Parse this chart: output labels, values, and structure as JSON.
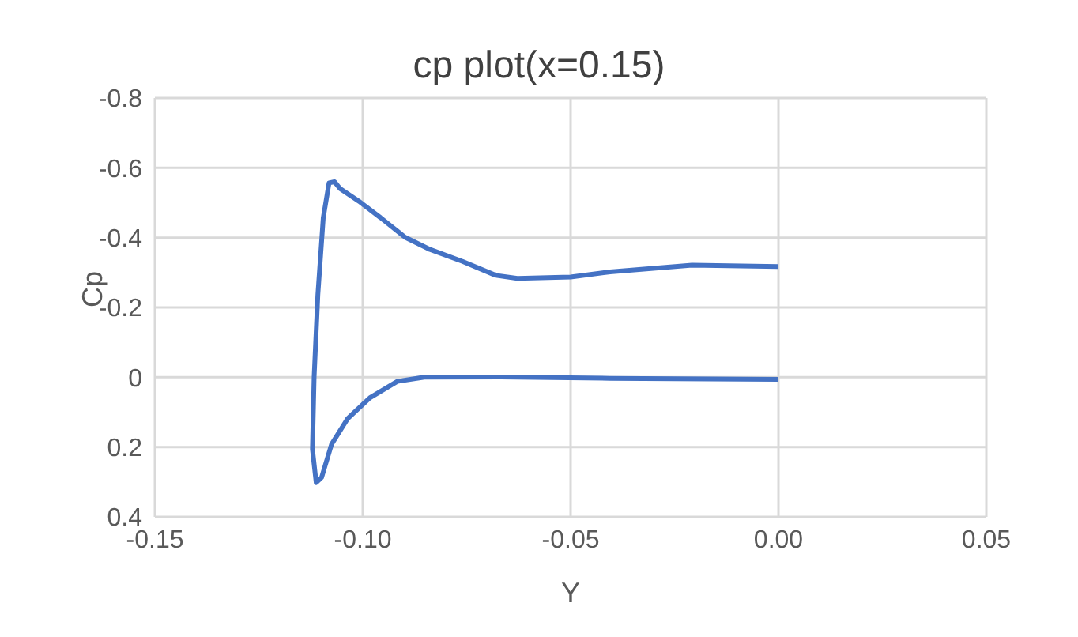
{
  "chart_data": {
    "type": "line",
    "title": "cp plot(x=0.15)",
    "xlabel": "Y",
    "ylabel": "Cp",
    "series": [
      {
        "color": "#4472c4",
        "x": [
          0,
          -0.0208,
          -0.0405,
          -0.05,
          -0.0628,
          -0.068,
          -0.076,
          -0.0838,
          -0.0898,
          -0.0957,
          -0.1009,
          -0.1055,
          -0.1068,
          -0.1081,
          -0.1095,
          -0.1108,
          -0.1117,
          -0.1121,
          -0.1112,
          -0.1099,
          -0.1075,
          -0.1036,
          -0.0983,
          -0.0917,
          -0.0852,
          -0.0668,
          -0.0405,
          0
        ],
        "values": [
          -0.317,
          -0.321,
          -0.302,
          -0.287,
          -0.283,
          -0.292,
          -0.332,
          -0.366,
          -0.401,
          -0.457,
          -0.504,
          -0.541,
          -0.56,
          -0.557,
          -0.457,
          -0.236,
          0,
          0.206,
          0.302,
          0.287,
          0.192,
          0.118,
          0.059,
          0.012,
          0,
          -0.001,
          0.003,
          0.006
        ]
      }
    ],
    "xlim": [
      -0.15,
      0.05
    ],
    "xticks": [
      {
        "value": -0.15,
        "label": "-0.15"
      },
      {
        "value": -0.1,
        "label": "-0.10"
      },
      {
        "value": -0.05,
        "label": "-0.05"
      },
      {
        "value": 0,
        "label": "0.00"
      },
      {
        "value": 0.05,
        "label": "0.05"
      }
    ],
    "ylim": [
      0.4,
      -0.8
    ],
    "yticks": [
      {
        "value": 0.4,
        "label": "0.4"
      },
      {
        "value": 0.2,
        "label": "0.2"
      },
      {
        "value": 0,
        "label": "0"
      },
      {
        "value": -0.2,
        "label": "-0.2"
      },
      {
        "value": -0.4,
        "label": "-0.4"
      },
      {
        "value": -0.6,
        "label": "-0.6"
      },
      {
        "value": -0.8,
        "label": "-0.8"
      }
    ],
    "grid": true,
    "marker": "none",
    "line_style": "solid"
  }
}
